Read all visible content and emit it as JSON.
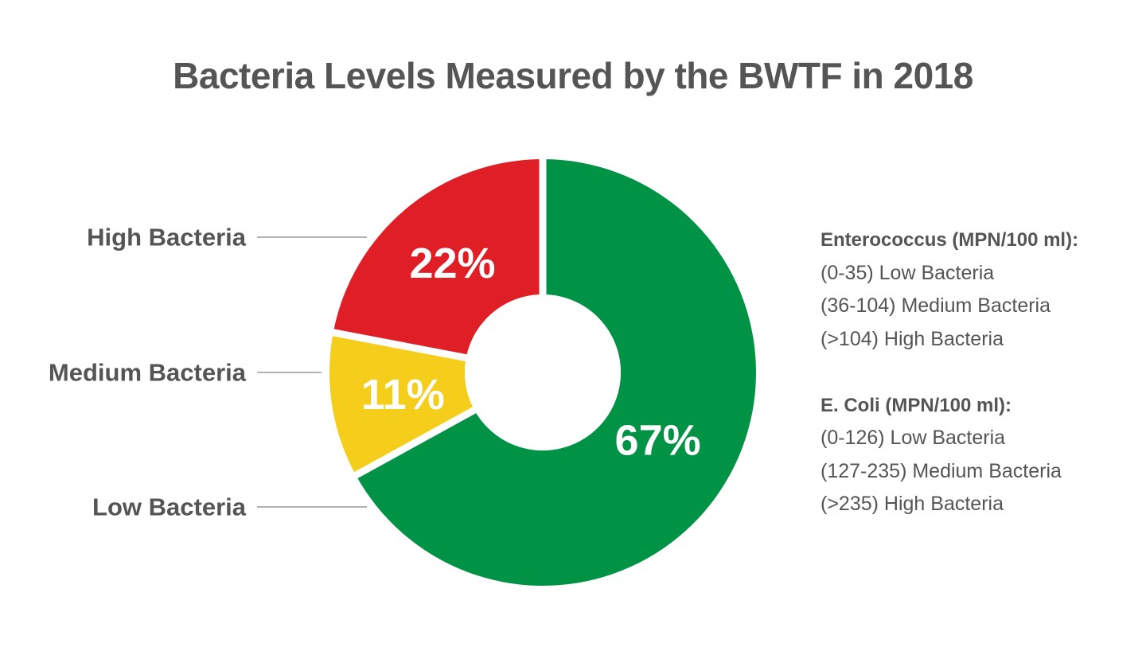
{
  "chart_data": {
    "type": "pie",
    "title": "Bacteria Levels Measured by the BWTF in 2018",
    "donut": true,
    "slices": [
      {
        "label": "Low Bacteria",
        "value": 67,
        "display": "67%",
        "color": "#009245"
      },
      {
        "label": "Medium Bacteria",
        "value": 11,
        "display": "11%",
        "color": "#F5CE1B"
      },
      {
        "label": "High Bacteria",
        "value": 22,
        "display": "22%",
        "color": "#E01E26"
      }
    ],
    "legend_placement": "left"
  },
  "notes": {
    "groups": [
      {
        "heading": "Enterococcus (MPN/100 ml):",
        "lines": [
          "(0-35) Low Bacteria",
          "(36-104) Medium Bacteria",
          "(>104) High Bacteria"
        ]
      },
      {
        "heading": "E. Coli (MPN/100 ml):",
        "lines": [
          "(0-126) Low Bacteria",
          "(127-235) Medium Bacteria",
          "(>235) High Bacteria"
        ]
      }
    ]
  }
}
